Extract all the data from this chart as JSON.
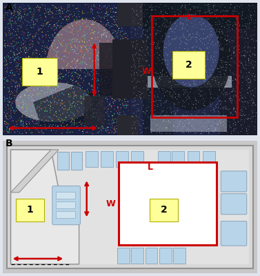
{
  "fig_width": 3.77,
  "fig_height": 4.0,
  "dpi": 100,
  "panel_a_label": "A",
  "panel_b_label": "B",
  "label1": "1",
  "label2": "2",
  "label_L": "L",
  "label_W": "W",
  "red_color": "#cc0000",
  "yellow_bg": "#ffff99",
  "seat_color": "#b8d4e8",
  "seat_edge": "#90aac0",
  "bus_gray": "#c8c8c8",
  "bus_dark_gray": "#a0a0a0",
  "bus_light": "#e0e0e0",
  "wc_white": "#ffffff",
  "bg_b_color": "#d4d4d4",
  "panel_a_bg_left": "#3040608",
  "fig_bg": "#e0e4ec"
}
